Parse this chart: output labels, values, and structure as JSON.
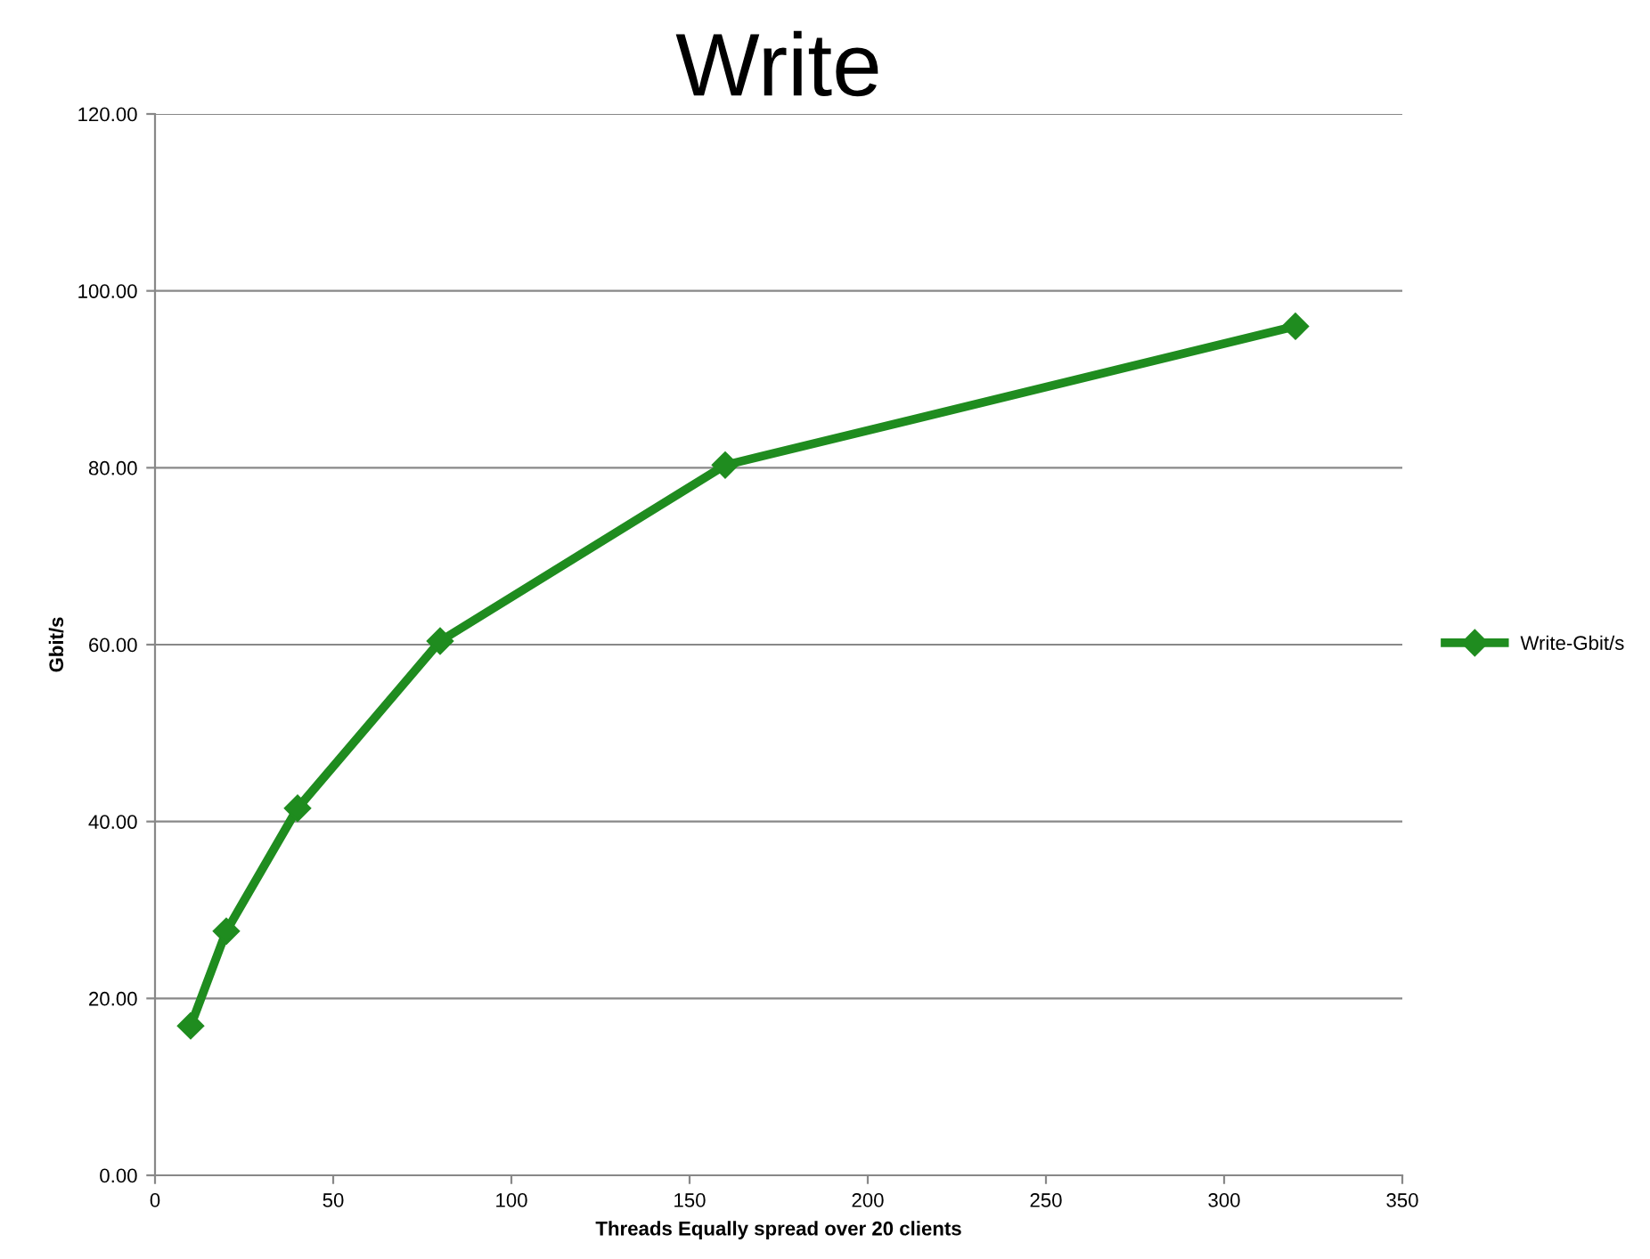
{
  "chart_data": {
    "type": "line",
    "title": "Write",
    "xlabel": "Threads Equally spread over 20 clients",
    "ylabel": "Gbit/s",
    "x": [
      10,
      20,
      40,
      80,
      160,
      320
    ],
    "series": [
      {
        "name": "Write-Gbit/s",
        "color": "#1f8c1f",
        "values": [
          16.9,
          27.6,
          41.5,
          60.4,
          80.3,
          96.0
        ]
      }
    ],
    "xlim": [
      0,
      350
    ],
    "xticks": [
      0,
      50,
      100,
      150,
      200,
      250,
      300,
      350
    ],
    "ylim": [
      0,
      120
    ],
    "yticks": [
      {
        "value": 0,
        "label": "0.00"
      },
      {
        "value": 20,
        "label": "20.00"
      },
      {
        "value": 40,
        "label": "40.00"
      },
      {
        "value": 60,
        "label": "60.00"
      },
      {
        "value": 80,
        "label": "80.00"
      },
      {
        "value": 100,
        "label": "100.00"
      },
      {
        "value": 120,
        "label": "120.00"
      }
    ],
    "grid": "y",
    "legend": "right",
    "marker": "diamond",
    "line_style": "solid"
  }
}
